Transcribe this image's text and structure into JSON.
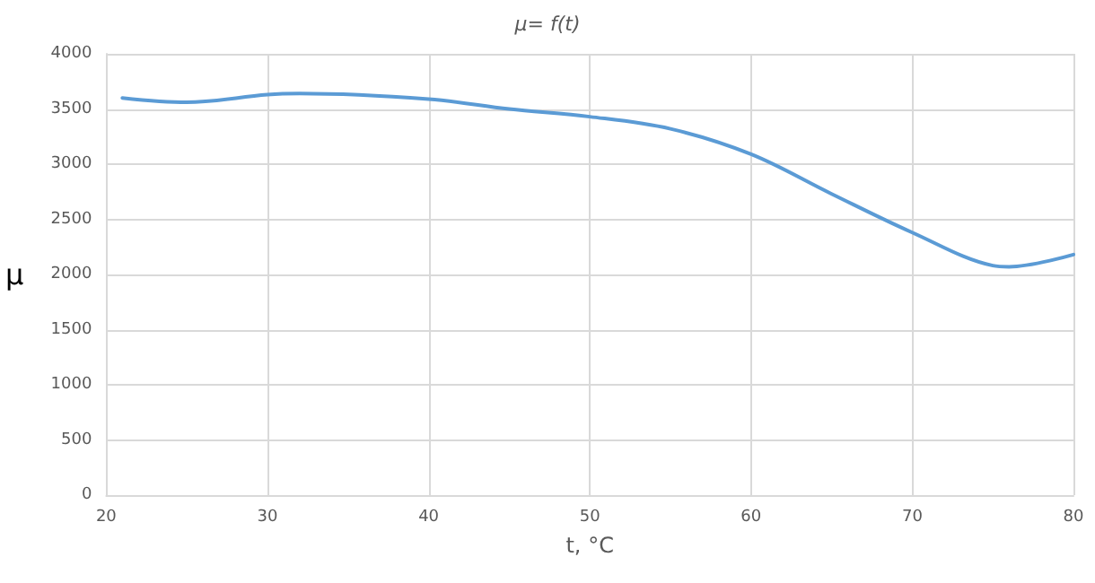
{
  "chart_data": {
    "type": "line",
    "title": "μ= f(t)",
    "xlabel": "t, °C",
    "ylabel": "μ",
    "x": [
      21,
      25,
      30,
      32,
      40,
      45,
      50,
      55,
      60,
      65,
      70,
      75,
      76,
      80
    ],
    "series": [
      {
        "color": "#5b9bd5",
        "values": [
          3600,
          3560,
          3630,
          3640,
          3590,
          3500,
          3430,
          3320,
          3090,
          2730,
          2380,
          2080,
          2070,
          2180
        ]
      }
    ],
    "xlim": [
      20,
      80
    ],
    "xticks": [
      20,
      30,
      40,
      50,
      60,
      70,
      80
    ],
    "ylim": [
      0,
      4000
    ],
    "yticks": [
      0,
      500,
      1000,
      1500,
      2000,
      2500,
      3000,
      3500,
      4000
    ],
    "grid": true,
    "marker": "none",
    "line_style": "solid"
  }
}
